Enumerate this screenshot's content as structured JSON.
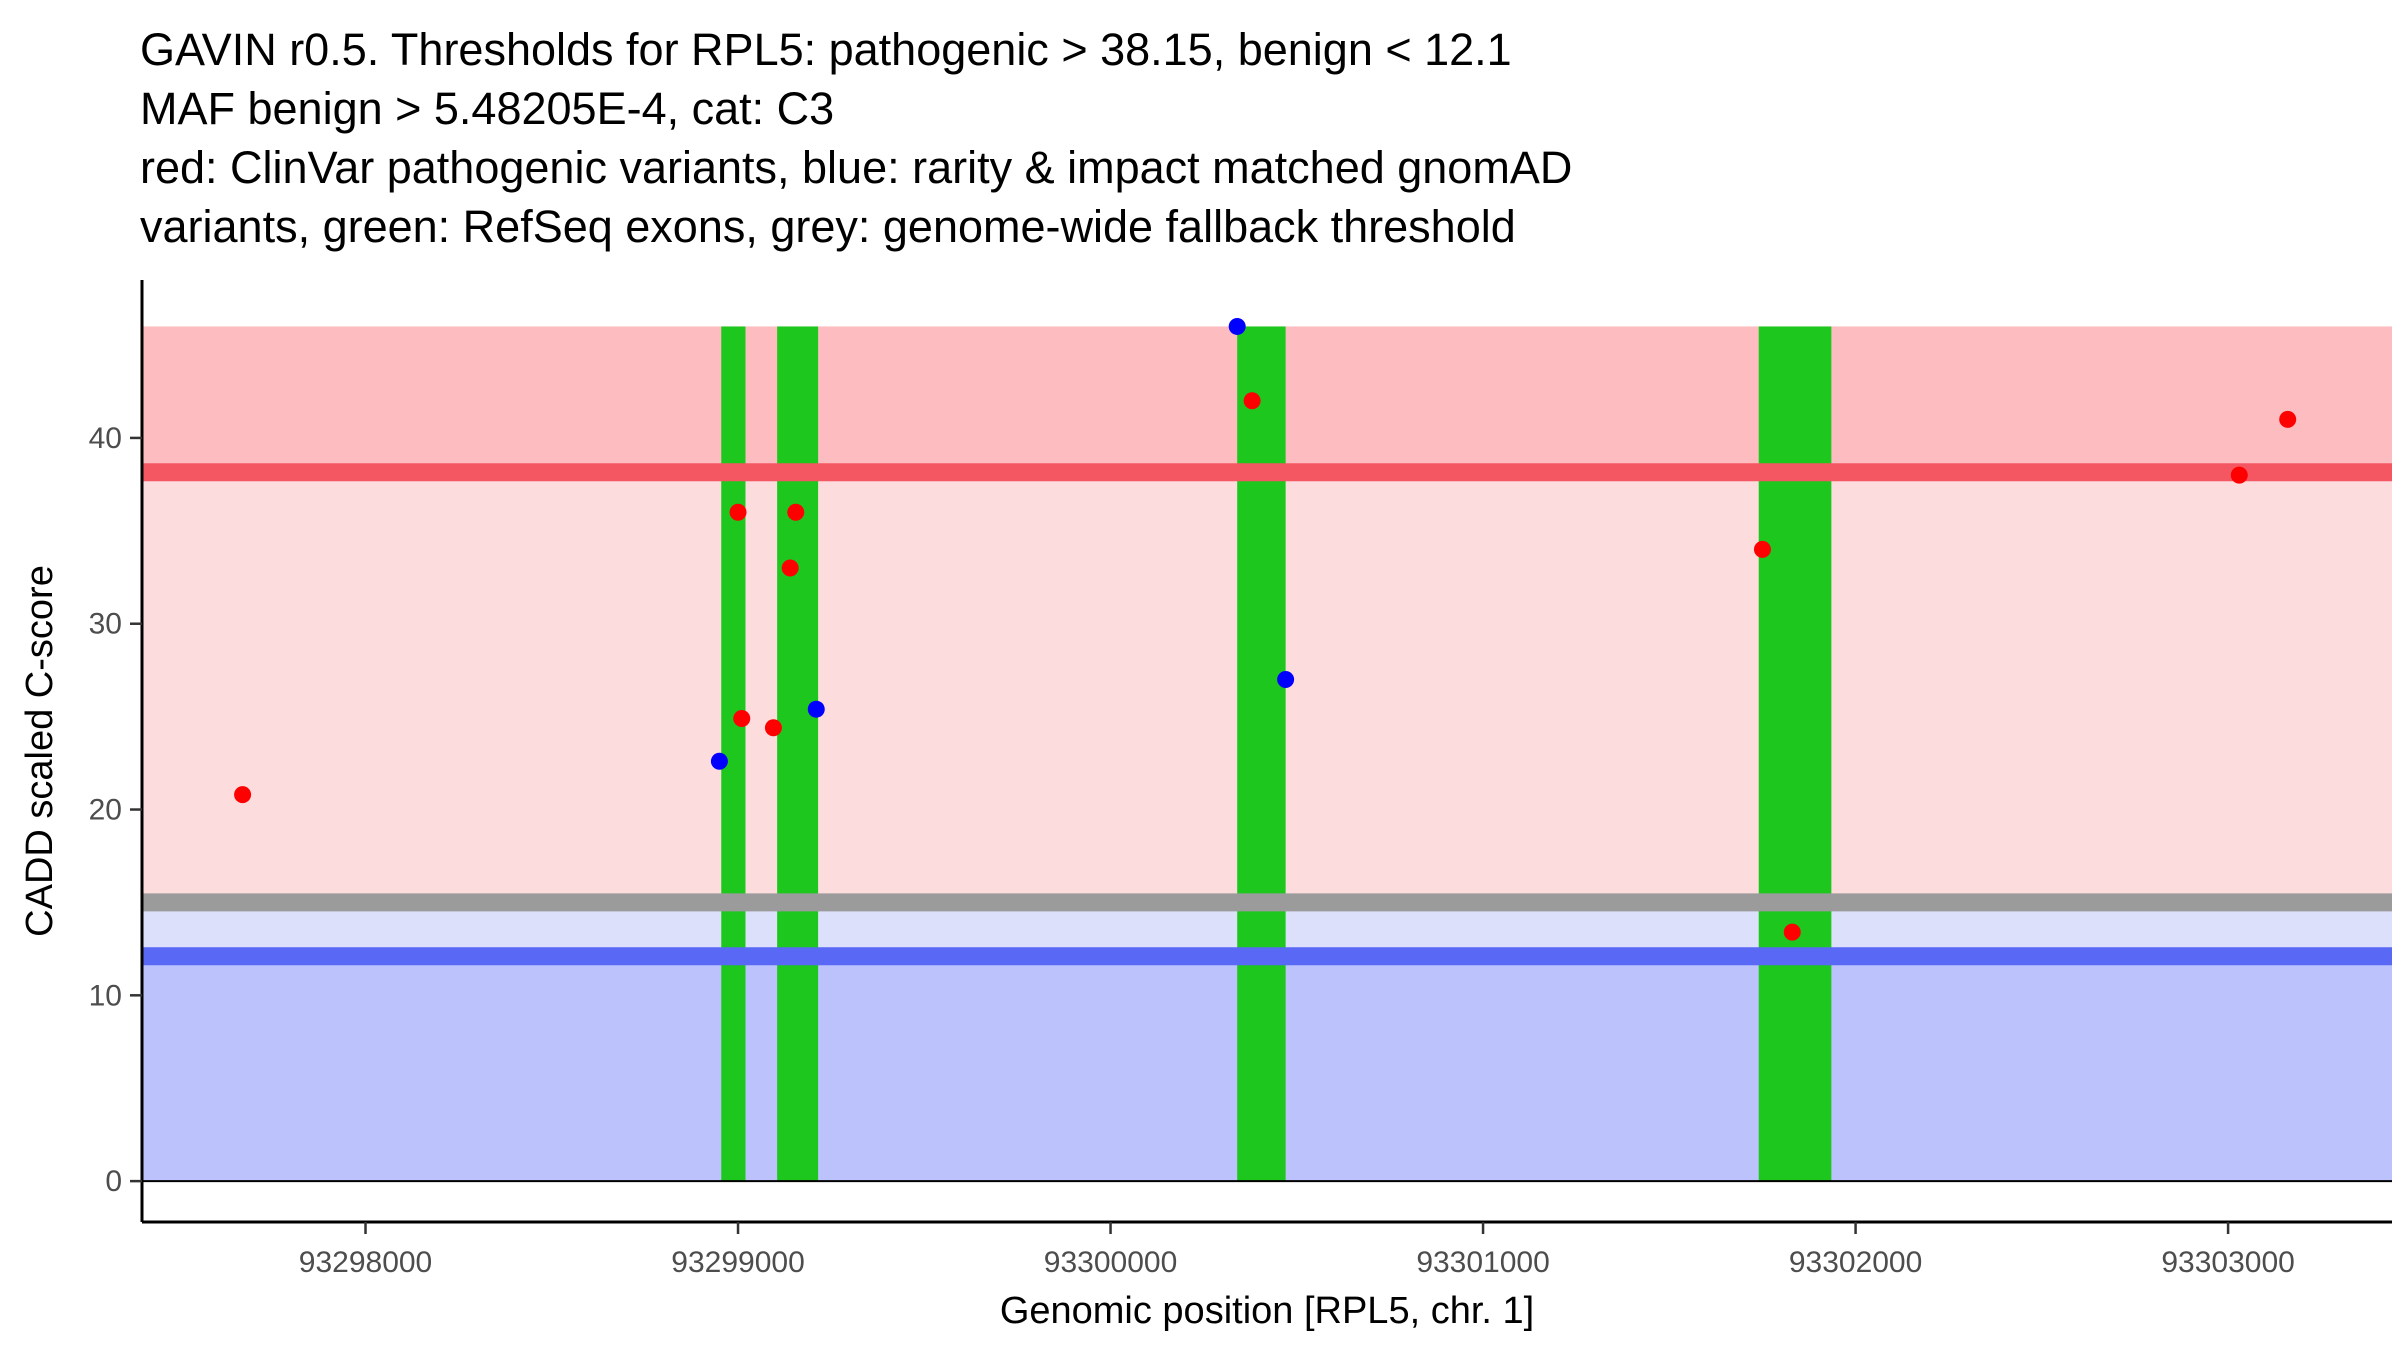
{
  "chart_data": {
    "type": "scatter",
    "title_lines": [
      "GAVIN r0.5. Thresholds for RPL5: pathogenic > 38.15, benign < 12.1",
      "MAF benign > 5.48205E-4, cat: C3",
      "red: ClinVar pathogenic variants, blue: rarity & impact matched gnomAD",
      "variants, green: RefSeq exons, grey: genome-wide fallback threshold"
    ],
    "xlabel": "Genomic position [RPL5, chr. 1]",
    "ylabel": "CADD scaled C-score",
    "xlim": [
      93297400,
      93303440
    ],
    "ylim": [
      -2.2,
      48.5
    ],
    "x_ticks": [
      93298000,
      93299000,
      93300000,
      93301000,
      93302000,
      93303000
    ],
    "x_tick_labels": [
      "93298000",
      "93299000",
      "93300000",
      "93301000",
      "93302000",
      "93303000"
    ],
    "y_ticks": [
      0,
      10,
      20,
      30,
      40
    ],
    "y_tick_labels": [
      "0",
      "10",
      "20",
      "30",
      "40"
    ],
    "grid": false,
    "thresholds": {
      "pathogenic": 38.15,
      "benign": 12.1,
      "fallback": 15.0,
      "max_score": 46
    },
    "colors": {
      "pathogenic_region": "#fddcde",
      "pathogenic_region_upper": "#fdbcc0",
      "benign_region": "#bcc2fb",
      "fallback_region": "#dde0fb",
      "pathogenic_line": "#f55762",
      "benign_line": "#5969f5",
      "fallback_line": "#9b9b9b",
      "exon": "#1ec71e",
      "clinvar": "#ff0000",
      "gnomad": "#0000ff"
    },
    "exons": [
      {
        "start": 93298955,
        "end": 93299020
      },
      {
        "start": 93299105,
        "end": 93299215
      },
      {
        "start": 93300340,
        "end": 93300470
      },
      {
        "start": 93301740,
        "end": 93301935
      }
    ],
    "series": [
      {
        "name": "ClinVar pathogenic variants",
        "color": "#ff0000",
        "points": [
          {
            "x": 93297670,
            "y": 20.8
          },
          {
            "x": 93299000,
            "y": 36.0
          },
          {
            "x": 93299010,
            "y": 24.9
          },
          {
            "x": 93299095,
            "y": 24.4
          },
          {
            "x": 93299140,
            "y": 33.0
          },
          {
            "x": 93299155,
            "y": 36.0
          },
          {
            "x": 93300380,
            "y": 42.0
          },
          {
            "x": 93301750,
            "y": 34.0
          },
          {
            "x": 93301830,
            "y": 13.4
          },
          {
            "x": 93303030,
            "y": 38.0
          },
          {
            "x": 93303160,
            "y": 41.0
          }
        ]
      },
      {
        "name": "gnomAD matched variants",
        "color": "#0000ff",
        "points": [
          {
            "x": 93298950,
            "y": 22.6
          },
          {
            "x": 93299210,
            "y": 25.4
          },
          {
            "x": 93300340,
            "y": 46.0
          },
          {
            "x": 93300470,
            "y": 27.0
          }
        ]
      }
    ]
  }
}
